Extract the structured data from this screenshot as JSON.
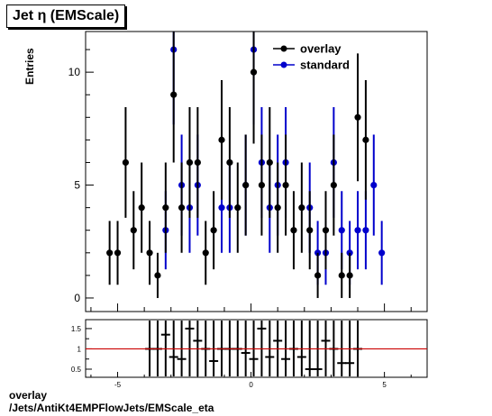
{
  "header": {
    "title": "Jet  η (EMScale)"
  },
  "footer": {
    "line1": "overlay",
    "line2": "/Jets/AntiKt4EMPFlowJets/EMScale_eta"
  },
  "chart_data": [
    {
      "type": "scatter",
      "title": "Jet  η (EMScale)",
      "xlabel": "",
      "ylabel": "Entries",
      "xlim": [
        -6.2,
        6.6
      ],
      "ylim": [
        -0.6,
        11.8
      ],
      "xticks": [
        -5,
        0,
        5
      ],
      "yticks": [
        0,
        5,
        10
      ],
      "legend_position": "top-right",
      "series": [
        {
          "name": "overlay",
          "color": "#000000",
          "x": [
            -5.3,
            -5.0,
            -4.7,
            -4.4,
            -4.1,
            -3.8,
            -3.5,
            -3.2,
            -2.9,
            -2.6,
            -2.3,
            -2.0,
            -1.7,
            -1.4,
            -1.1,
            -0.8,
            -0.5,
            -0.2,
            0.1,
            0.4,
            0.7,
            1.0,
            1.3,
            1.6,
            1.9,
            2.2,
            2.5,
            2.8,
            3.1,
            3.4,
            3.7,
            4.0,
            4.3
          ],
          "y": [
            2,
            2,
            6,
            3,
            4,
            2,
            1,
            4,
            9,
            4,
            6,
            6,
            2,
            3,
            7,
            6,
            4,
            5,
            10,
            5,
            6,
            4,
            5,
            3,
            4,
            3,
            1,
            3,
            5,
            1,
            1,
            8,
            7
          ]
        },
        {
          "name": "standard",
          "color": "#0000cc",
          "x": [
            -3.2,
            -2.9,
            -2.6,
            -2.3,
            -2.0,
            -1.1,
            -0.8,
            -0.2,
            0.1,
            0.4,
            0.7,
            1.0,
            1.3,
            2.2,
            2.5,
            2.8,
            3.1,
            3.4,
            3.7,
            4.0,
            4.3,
            4.6,
            4.9
          ],
          "y": [
            3,
            11,
            5,
            4,
            5,
            4,
            4,
            5,
            11,
            6,
            4,
            5,
            6,
            4,
            2,
            2,
            6,
            3,
            2,
            3,
            3,
            5,
            2
          ]
        }
      ]
    },
    {
      "type": "scatter",
      "title": "",
      "xlabel": "",
      "ylabel": "",
      "xlim": [
        -6.2,
        6.6
      ],
      "ylim": [
        0.3,
        1.72
      ],
      "xticks": [
        -5,
        0,
        5
      ],
      "yticks": [
        0.5,
        1,
        1.5
      ],
      "reference_line": 1,
      "reference_color": "#cc0000",
      "series": [
        {
          "name": "",
          "color": "#000000",
          "x": [
            -3.8,
            -3.5,
            -3.2,
            -2.9,
            -2.6,
            -2.3,
            -2.0,
            -1.7,
            -1.4,
            -1.1,
            -0.8,
            -0.5,
            -0.2,
            0.1,
            0.4,
            0.7,
            1.0,
            1.3,
            1.6,
            1.9,
            2.2,
            2.5,
            2.8,
            3.1,
            3.4,
            3.7,
            4.0
          ],
          "y": [
            1.0,
            1.0,
            1.35,
            0.8,
            0.75,
            1.5,
            1.2,
            1.0,
            0.7,
            1.0,
            1.0,
            1.0,
            0.9,
            0.75,
            1.5,
            0.8,
            1.2,
            0.75,
            1.0,
            0.8,
            0.5,
            0.5,
            1.2,
            1.0,
            0.65,
            0.65,
            1.0
          ]
        }
      ]
    }
  ]
}
